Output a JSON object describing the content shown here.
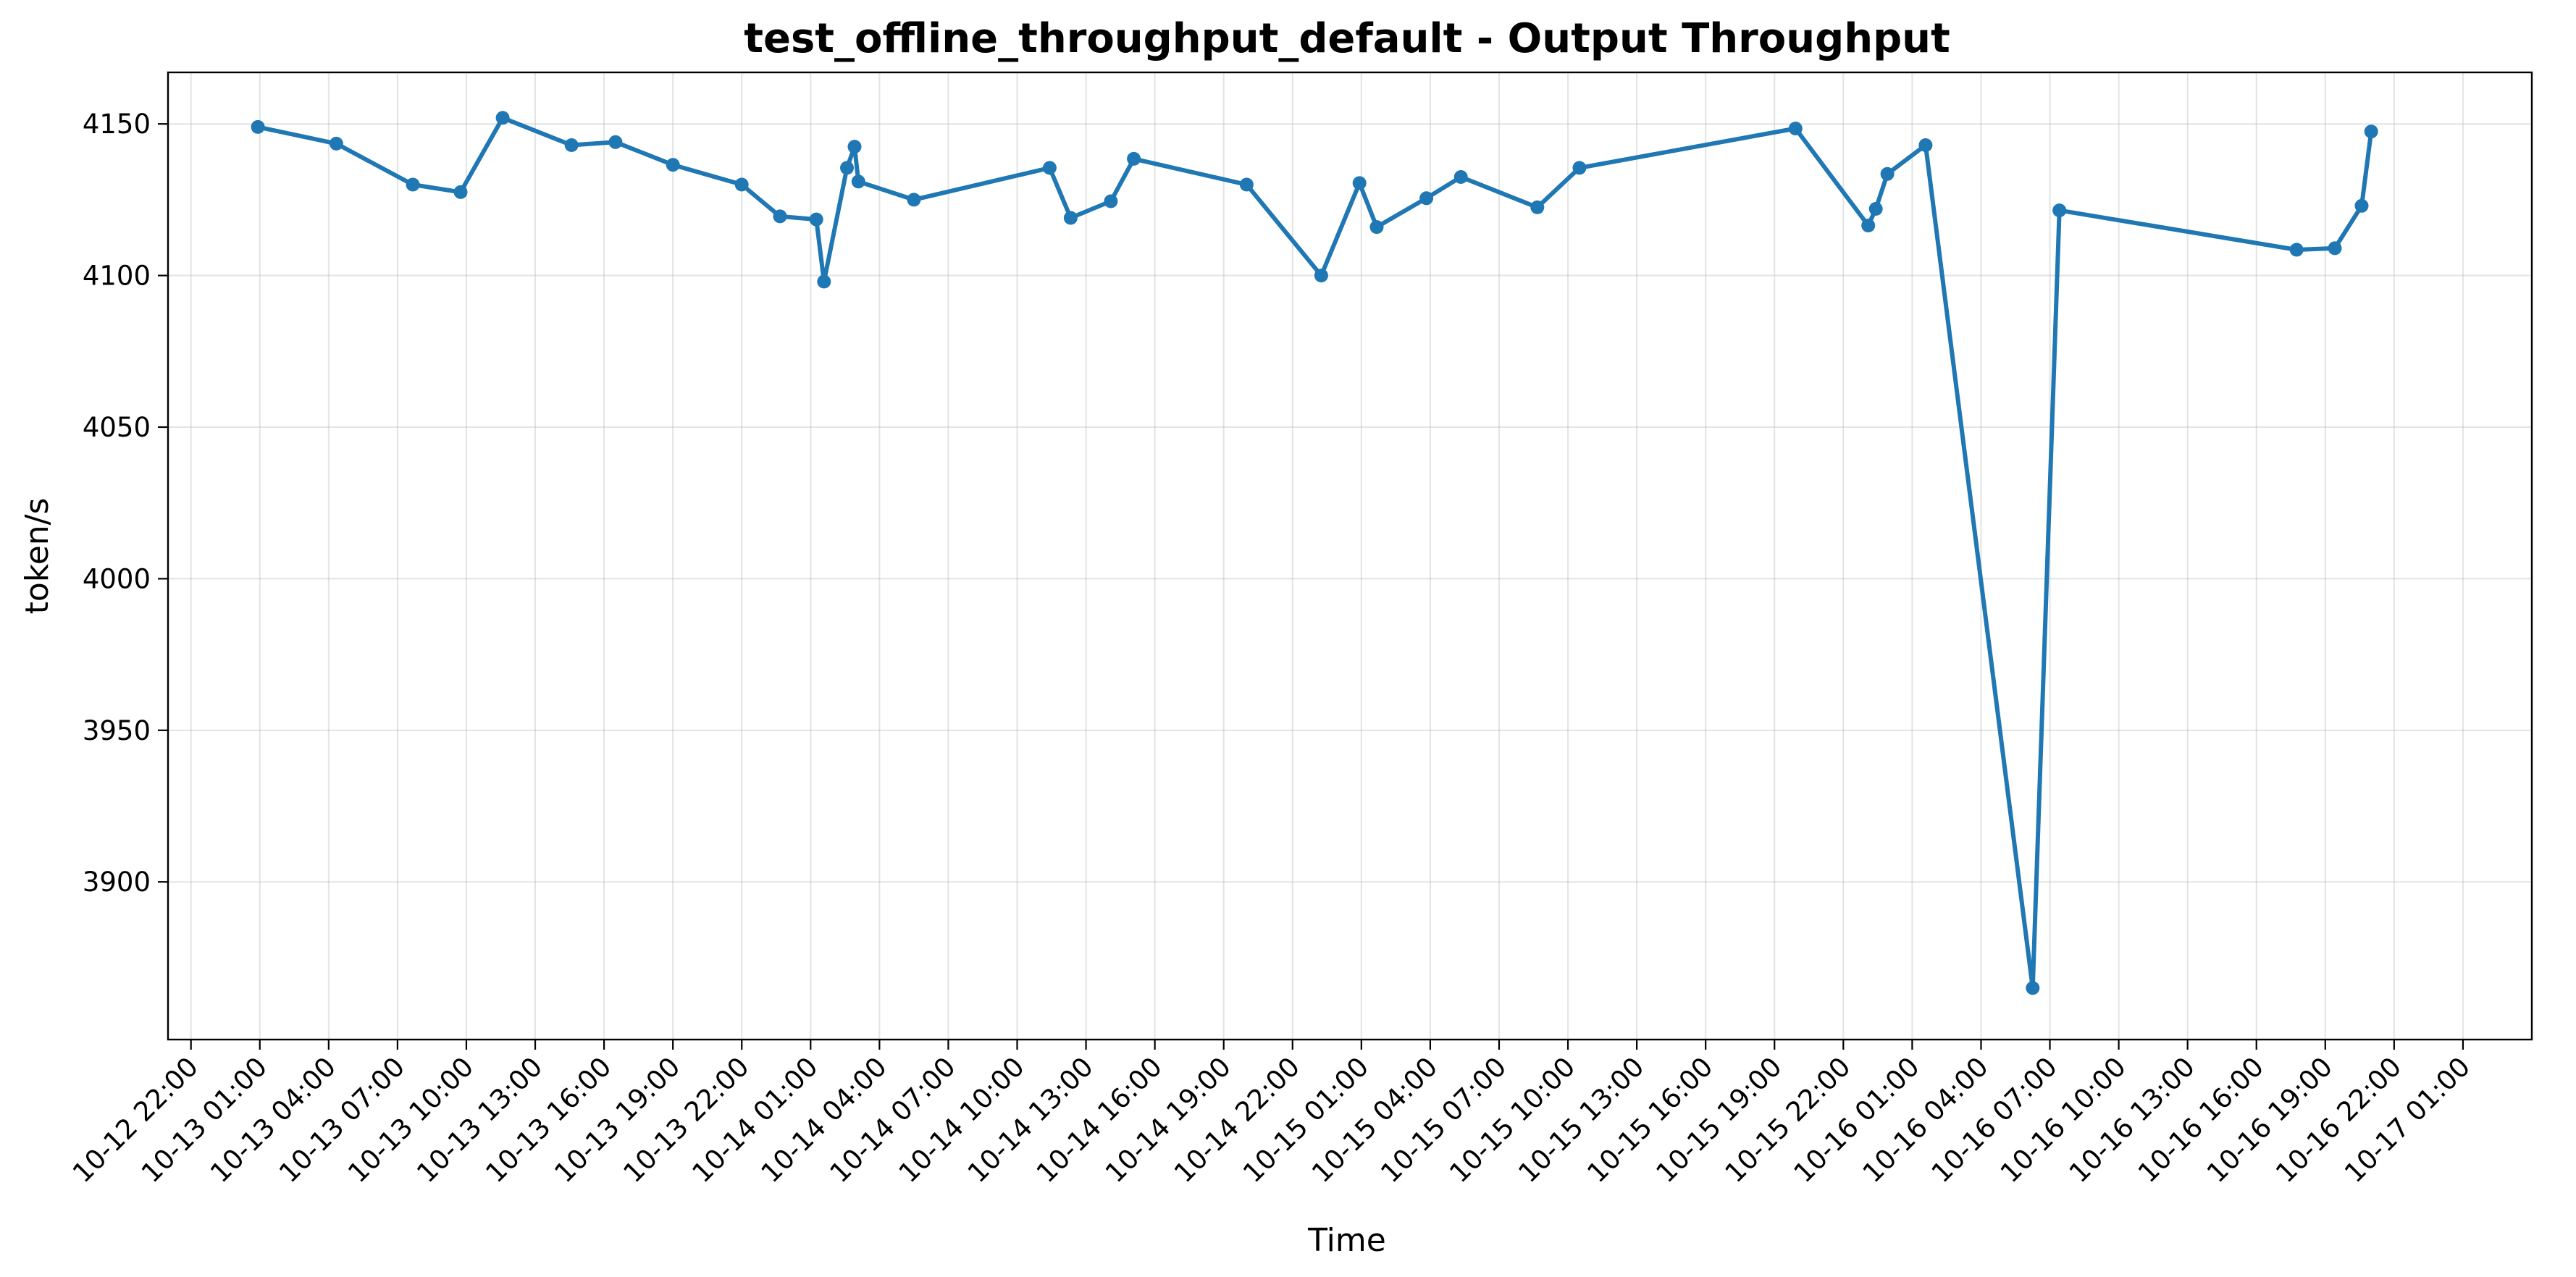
{
  "chart_data": {
    "type": "line",
    "title": "test_offline_throughput_default - Output Throughput",
    "xlabel": "Time",
    "ylabel": "token/s",
    "x_axis_type": "datetime",
    "xlim": [
      "2024-10-12T21:00",
      "2024-10-17T04:00"
    ],
    "ylim": [
      3848,
      4167
    ],
    "grid": true,
    "legend": "none",
    "color": "#1f77b4",
    "x_ticks": [
      "10-12 22:00",
      "10-13 01:00",
      "10-13 04:00",
      "10-13 07:00",
      "10-13 10:00",
      "10-13 13:00",
      "10-13 16:00",
      "10-13 19:00",
      "10-13 22:00",
      "10-14 01:00",
      "10-14 04:00",
      "10-14 07:00",
      "10-14 10:00",
      "10-14 13:00",
      "10-14 16:00",
      "10-14 19:00",
      "10-14 22:00",
      "10-15 01:00",
      "10-15 04:00",
      "10-15 07:00",
      "10-15 10:00",
      "10-15 13:00",
      "10-15 16:00",
      "10-15 19:00",
      "10-15 22:00",
      "10-16 01:00",
      "10-16 04:00",
      "10-16 07:00",
      "10-16 10:00",
      "10-16 13:00",
      "10-16 16:00",
      "10-16 19:00",
      "10-16 22:00",
      "10-17 01:00"
    ],
    "y_ticks": [
      3900,
      3950,
      4000,
      4050,
      4100,
      4150
    ],
    "series": [
      {
        "x": [
          "2024-10-13T00:55",
          "2024-10-13T04:20",
          "2024-10-13T07:40",
          "2024-10-13T09:45",
          "2024-10-13T11:35",
          "2024-10-13T14:35",
          "2024-10-13T16:30",
          "2024-10-13T19:00",
          "2024-10-13T22:00",
          "2024-10-13T23:40",
          "2024-10-14T01:15",
          "2024-10-14T01:35",
          "2024-10-14T02:35",
          "2024-10-14T02:55",
          "2024-10-14T03:05",
          "2024-10-14T05:30",
          "2024-10-14T11:25",
          "2024-10-14T12:20",
          "2024-10-14T14:05",
          "2024-10-14T15:05",
          "2024-10-14T20:00",
          "2024-10-14T23:15",
          "2024-10-15T00:55",
          "2024-10-15T01:40",
          "2024-10-15T03:50",
          "2024-10-15T05:20",
          "2024-10-15T08:40",
          "2024-10-15T10:30",
          "2024-10-15T19:55",
          "2024-10-15T23:05",
          "2024-10-15T23:25",
          "2024-10-15T23:55",
          "2024-10-16T01:35",
          "2024-10-16T06:15",
          "2024-10-16T07:25",
          "2024-10-16T17:45",
          "2024-10-16T19:25",
          "2024-10-16T20:35",
          "2024-10-16T21:00"
        ],
        "values": [
          4149,
          4143.5,
          4130,
          4127.5,
          4152,
          4143,
          4144,
          4136.5,
          4130,
          4119.5,
          4118.5,
          4098,
          4135.5,
          4142.5,
          4131,
          4125,
          4135.5,
          4119,
          4124.5,
          4138.5,
          4130,
          4100,
          4130.5,
          4116,
          4125.5,
          4132.5,
          4122.5,
          4135.5,
          4148.5,
          4116.5,
          4122,
          4133.5,
          4143,
          3865,
          4121.5,
          4108.5,
          4109,
          4123,
          4147.5
        ]
      }
    ]
  }
}
